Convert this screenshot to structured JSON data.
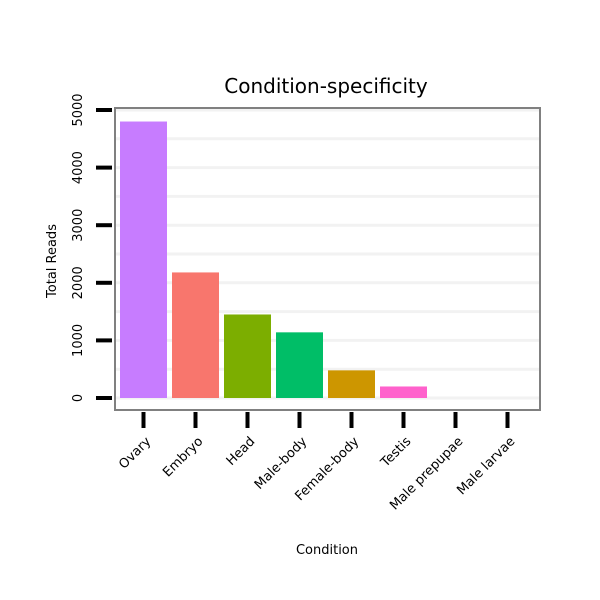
{
  "chart_data": {
    "type": "bar",
    "title": "Condition-specificity",
    "xlabel": "Condition",
    "ylabel": "Total Reads",
    "categories": [
      "Ovary",
      "Embryo",
      "Head",
      "Male-body",
      "Female-body",
      "Testis",
      "Male prepupae",
      "Male larvae"
    ],
    "values": [
      4800,
      2180,
      1450,
      1140,
      480,
      200,
      0,
      0
    ],
    "colors": [
      "#C77CFF",
      "#F8766D",
      "#7CAE00",
      "#00BE67",
      "#CD9600",
      "#FF61CC",
      "#00A9FF",
      "#00BFC4"
    ],
    "yticks": [
      0,
      1000,
      2000,
      3000,
      4000,
      5000
    ],
    "ylim": [
      -200,
      5000
    ],
    "grid": true,
    "legend": "none"
  }
}
